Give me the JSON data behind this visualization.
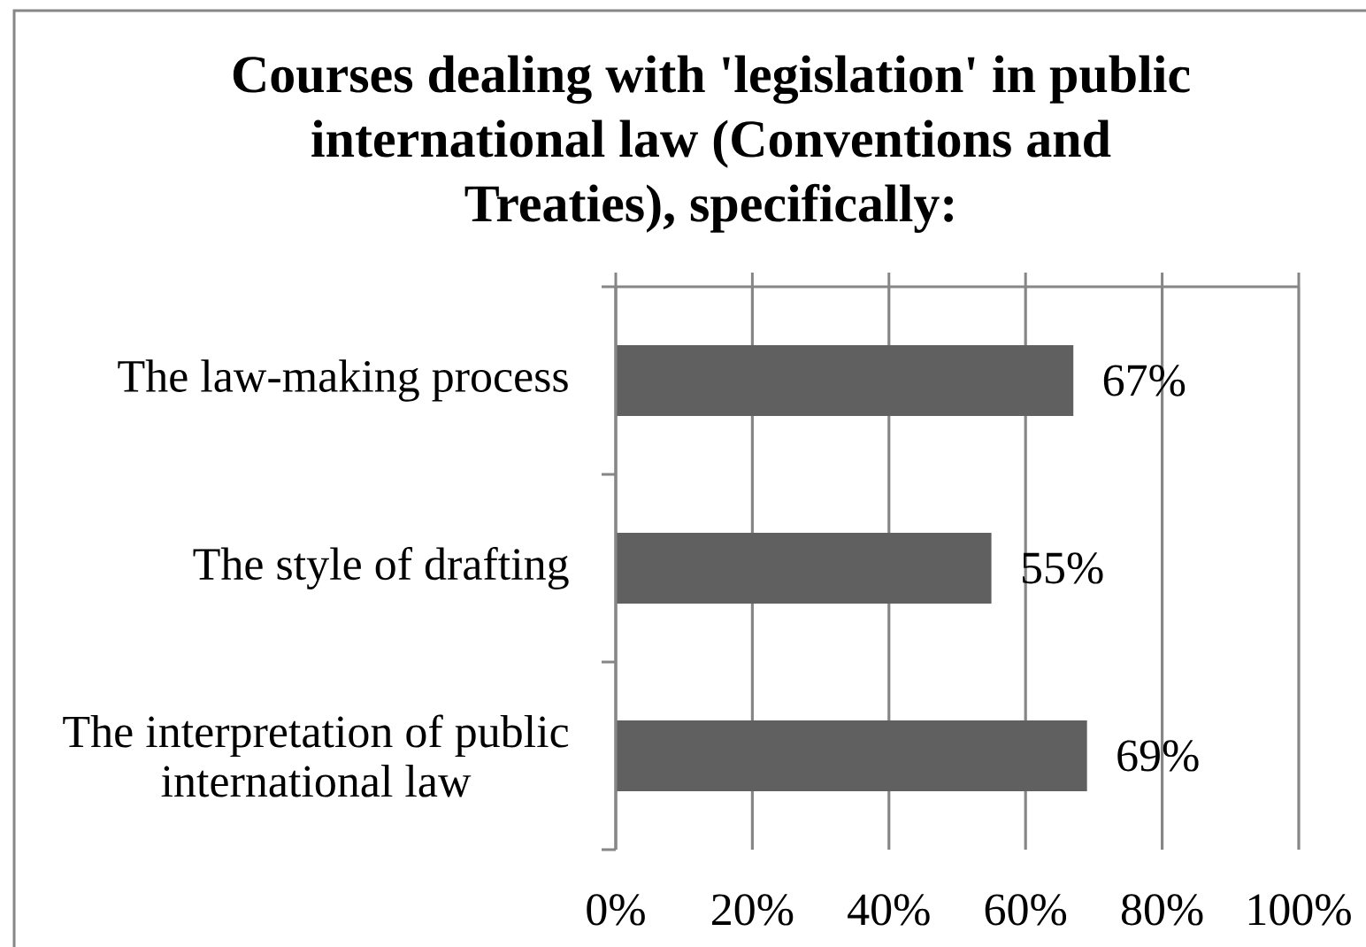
{
  "chart_data": {
    "type": "bar",
    "orientation": "horizontal",
    "title": "Courses dealing with 'legislation' in public international law (Conventions and Treaties), specifically:",
    "categories": [
      "The law-making process",
      "The style of drafting",
      "The interpretation of public international law"
    ],
    "values": [
      67,
      55,
      69
    ],
    "value_labels": [
      "67%",
      "55%",
      "69%"
    ],
    "color": "#606060",
    "xlim": [
      0,
      100
    ],
    "xticks": [
      {
        "value": 0,
        "label": "0%"
      },
      {
        "value": 20,
        "label": "20%"
      },
      {
        "value": 40,
        "label": "40%"
      },
      {
        "value": 60,
        "label": "60%"
      },
      {
        "value": 80,
        "label": "80%"
      },
      {
        "value": 100,
        "label": "100%"
      }
    ],
    "grid": "x"
  }
}
